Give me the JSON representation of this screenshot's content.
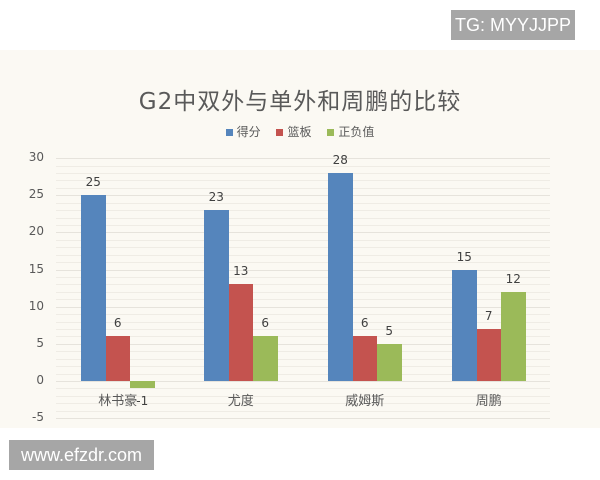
{
  "watermarks": {
    "top_right": "TG: MYYJJPP",
    "bottom_left": "www.efzdr.com"
  },
  "colors": {
    "score": "#5585bc",
    "rebounds": "#c4534f",
    "plus_minus": "#9bba59",
    "panel_bg": "#fbf9f3"
  },
  "chart_data": {
    "type": "bar",
    "title": "G2中双外与单外和周鹏的比较",
    "categories": [
      "林书豪",
      "尤度",
      "威姆斯",
      "周鹏"
    ],
    "series": [
      {
        "name": "得分",
        "values": [
          25,
          23,
          28,
          15
        ]
      },
      {
        "name": "篮板",
        "values": [
          6,
          13,
          6,
          7
        ]
      },
      {
        "name": "正负值",
        "values": [
          -1,
          6,
          5,
          12
        ]
      }
    ],
    "xlabel": "",
    "ylabel": "",
    "ylim": [
      -5,
      30
    ],
    "yticks": [
      "30",
      "25",
      "20",
      "15",
      "10",
      "5",
      "0",
      "-5"
    ],
    "legend_position": "top",
    "grid": true,
    "data_labels": true
  }
}
